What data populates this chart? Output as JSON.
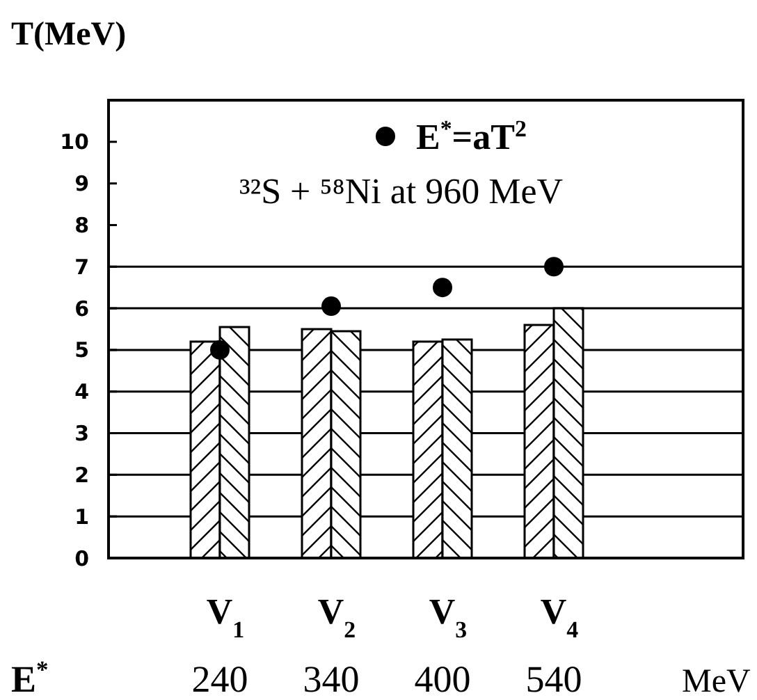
{
  "chart_data": {
    "type": "bar",
    "ylabel": "T(MeV)",
    "categories": [
      "V$_{1}$",
      "V$_{2}$",
      "V$_{3}$",
      "V$_{4}$"
    ],
    "series": [
      {
        "color": "#000000",
        "values": [
          5.2,
          5.5,
          5.2,
          5.6
        ]
      },
      {
        "color": "#000000",
        "values": [
          5.55,
          5.45,
          5.25,
          6.0
        ]
      },
      {
        "type": "scatter",
        "name": "E$^{*}$=aT$^{2}$",
        "color": "#000000",
        "values": [
          5.0,
          6.05,
          6.5,
          7.0
        ]
      }
    ],
    "ylim": [
      0,
      11
    ],
    "yticks": [
      0,
      1,
      2,
      3,
      4,
      5,
      6,
      7,
      8,
      9,
      10
    ],
    "ref_lines": [
      {
        "axis": "y",
        "value": 1,
        "color": "#000000"
      },
      {
        "axis": "y",
        "value": 2,
        "color": "#000000"
      },
      {
        "axis": "y",
        "value": 3,
        "color": "#000000"
      },
      {
        "axis": "y",
        "value": 4,
        "color": "#000000"
      },
      {
        "axis": "y",
        "value": 5,
        "color": "#000000"
      },
      {
        "axis": "y",
        "value": 6,
        "color": "#000000"
      },
      {
        "axis": "y",
        "value": 7,
        "color": "#000000"
      }
    ],
    "legend": "top",
    "marker": "circle",
    "annotations": [
      "³²S + ⁵⁸Ni at 960 MeV",
      "E$^{*}$",
      "240",
      "340",
      "400",
      "540",
      "MeV"
    ]
  }
}
